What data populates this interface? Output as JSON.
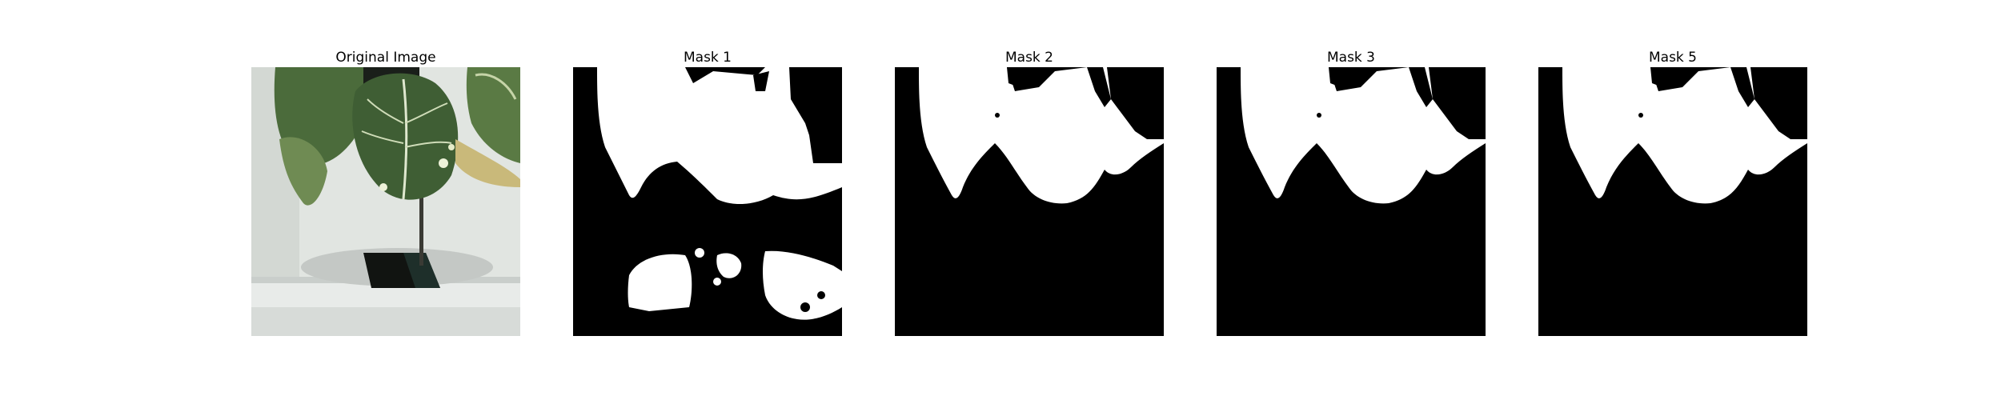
{
  "panels": [
    {
      "title": "Original Image",
      "kind": "photo"
    },
    {
      "title": "Mask 1",
      "kind": "mask"
    },
    {
      "title": "Mask 2",
      "kind": "mask"
    },
    {
      "title": "Mask 3",
      "kind": "mask"
    },
    {
      "title": "Mask 5",
      "kind": "mask"
    }
  ],
  "colors": {
    "mask_background": "#000000",
    "mask_foreground": "#ffffff",
    "wall": "#dfe3df",
    "leaf_dark": "#3f5e34",
    "leaf_mid": "#5f7f4a",
    "leaf_yellow": "#c9b97a",
    "pot_rim": "#c8ccc9",
    "shelf": "#e9ecea"
  }
}
